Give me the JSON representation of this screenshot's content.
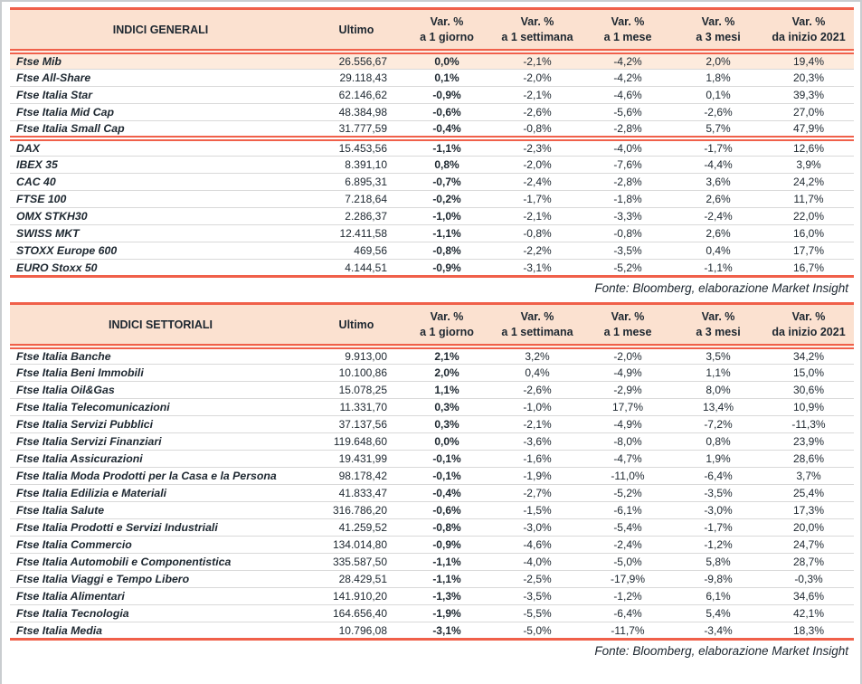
{
  "accent_colors": {
    "line_red": "#f0604a",
    "header_background": "#fbe1d0",
    "highlight_row_background": "#fdebdd",
    "text": "#1d2730"
  },
  "tables": [
    {
      "title": "INDICI GENERALI",
      "ultimo_label": "Ultimo",
      "var_columns": [
        {
          "line1": "Var. %",
          "line2": "a 1 giorno"
        },
        {
          "line1": "Var. %",
          "line2": "a 1 settimana"
        },
        {
          "line1": "Var. %",
          "line2": "a 1 mese"
        },
        {
          "line1": "Var. %",
          "line2": "a 3 mesi"
        },
        {
          "line1": "Var. %",
          "line2": "da inizio 2021"
        }
      ],
      "rows": [
        {
          "name": "Ftse Mib",
          "values": [
            "26.556,67",
            "0,0%",
            "-2,1%",
            "-4,2%",
            "2,0%",
            "19,4%"
          ],
          "highlight": true
        },
        {
          "name": "Ftse All-Share",
          "values": [
            "29.118,43",
            "0,1%",
            "-2,0%",
            "-4,2%",
            "1,8%",
            "20,3%"
          ]
        },
        {
          "name": "Ftse Italia Star",
          "values": [
            "62.146,62",
            "-0,9%",
            "-2,1%",
            "-4,6%",
            "0,1%",
            "39,3%"
          ]
        },
        {
          "name": "Ftse Italia Mid Cap",
          "values": [
            "48.384,98",
            "-0,6%",
            "-2,6%",
            "-5,6%",
            "-2,6%",
            "27,0%"
          ]
        },
        {
          "name": "Ftse Italia Small Cap",
          "values": [
            "31.777,59",
            "-0,4%",
            "-0,8%",
            "-2,8%",
            "5,7%",
            "47,9%"
          ],
          "divider_after": true
        },
        {
          "name": "DAX",
          "values": [
            "15.453,56",
            "-1,1%",
            "-2,3%",
            "-4,0%",
            "-1,7%",
            "12,6%"
          ]
        },
        {
          "name": "IBEX 35",
          "values": [
            "8.391,10",
            "0,8%",
            "-2,0%",
            "-7,6%",
            "-4,4%",
            "3,9%"
          ]
        },
        {
          "name": "CAC 40",
          "values": [
            "6.895,31",
            "-0,7%",
            "-2,4%",
            "-2,8%",
            "3,6%",
            "24,2%"
          ]
        },
        {
          "name": "FTSE 100",
          "values": [
            "7.218,64",
            "-0,2%",
            "-1,7%",
            "-1,8%",
            "2,6%",
            "11,7%"
          ]
        },
        {
          "name": "OMX STKH30",
          "values": [
            "2.286,37",
            "-1,0%",
            "-2,1%",
            "-3,3%",
            "-2,4%",
            "22,0%"
          ]
        },
        {
          "name": "SWISS MKT",
          "values": [
            "12.411,58",
            "-1,1%",
            "-0,8%",
            "-0,8%",
            "2,6%",
            "16,0%"
          ]
        },
        {
          "name": "STOXX Europe 600",
          "values": [
            "469,56",
            "-0,8%",
            "-2,2%",
            "-3,5%",
            "0,4%",
            "17,7%"
          ]
        },
        {
          "name": "EURO Stoxx 50",
          "values": [
            "4.144,51",
            "-0,9%",
            "-3,1%",
            "-5,2%",
            "-1,1%",
            "16,7%"
          ]
        }
      ],
      "source": "Fonte: Bloomberg, elaborazione Market Insight"
    },
    {
      "title": "INDICI SETTORIALI",
      "ultimo_label": "Ultimo",
      "var_columns": [
        {
          "line1": "Var. %",
          "line2": "a 1 giorno"
        },
        {
          "line1": "Var. %",
          "line2": "a 1 settimana"
        },
        {
          "line1": "Var. %",
          "line2": "a 1 mese"
        },
        {
          "line1": "Var. %",
          "line2": "a 3 mesi"
        },
        {
          "line1": "Var. %",
          "line2": "da inizio 2021"
        }
      ],
      "rows": [
        {
          "name": "Ftse Italia Banche",
          "values": [
            "9.913,00",
            "2,1%",
            "3,2%",
            "-2,0%",
            "3,5%",
            "34,2%"
          ]
        },
        {
          "name": "Ftse Italia Beni Immobili",
          "values": [
            "10.100,86",
            "2,0%",
            "0,4%",
            "-4,9%",
            "1,1%",
            "15,0%"
          ]
        },
        {
          "name": "Ftse Italia Oil&Gas",
          "values": [
            "15.078,25",
            "1,1%",
            "-2,6%",
            "-2,9%",
            "8,0%",
            "30,6%"
          ]
        },
        {
          "name": "Ftse Italia Telecomunicazioni",
          "values": [
            "11.331,70",
            "0,3%",
            "-1,0%",
            "17,7%",
            "13,4%",
            "10,9%"
          ]
        },
        {
          "name": "Ftse Italia Servizi Pubblici",
          "values": [
            "37.137,56",
            "0,3%",
            "-2,1%",
            "-4,9%",
            "-7,2%",
            "-11,3%"
          ]
        },
        {
          "name": "Ftse Italia Servizi Finanziari",
          "values": [
            "119.648,60",
            "0,0%",
            "-3,6%",
            "-8,0%",
            "0,8%",
            "23,9%"
          ]
        },
        {
          "name": "Ftse Italia Assicurazioni",
          "values": [
            "19.431,99",
            "-0,1%",
            "-1,6%",
            "-4,7%",
            "1,9%",
            "28,6%"
          ]
        },
        {
          "name": "Ftse Italia Moda Prodotti per la Casa e la Persona",
          "values": [
            "98.178,42",
            "-0,1%",
            "-1,9%",
            "-11,0%",
            "-6,4%",
            "3,7%"
          ]
        },
        {
          "name": "Ftse Italia Edilizia e Materiali",
          "values": [
            "41.833,47",
            "-0,4%",
            "-2,7%",
            "-5,2%",
            "-3,5%",
            "25,4%"
          ]
        },
        {
          "name": "Ftse Italia Salute",
          "values": [
            "316.786,20",
            "-0,6%",
            "-1,5%",
            "-6,1%",
            "-3,0%",
            "17,3%"
          ]
        },
        {
          "name": "Ftse Italia Prodotti e Servizi Industriali",
          "values": [
            "41.259,52",
            "-0,8%",
            "-3,0%",
            "-5,4%",
            "-1,7%",
            "20,0%"
          ]
        },
        {
          "name": "Ftse Italia Commercio",
          "values": [
            "134.014,80",
            "-0,9%",
            "-4,6%",
            "-2,4%",
            "-1,2%",
            "24,7%"
          ]
        },
        {
          "name": "Ftse Italia Automobili e Componentistica",
          "values": [
            "335.587,50",
            "-1,1%",
            "-4,0%",
            "-5,0%",
            "5,8%",
            "28,7%"
          ]
        },
        {
          "name": "Ftse Italia Viaggi e Tempo Libero",
          "values": [
            "28.429,51",
            "-1,1%",
            "-2,5%",
            "-17,9%",
            "-9,8%",
            "-0,3%"
          ]
        },
        {
          "name": "Ftse Italia Alimentari",
          "values": [
            "141.910,20",
            "-1,3%",
            "-3,5%",
            "-1,2%",
            "6,1%",
            "34,6%"
          ]
        },
        {
          "name": "Ftse Italia Tecnologia",
          "values": [
            "164.656,40",
            "-1,9%",
            "-5,5%",
            "-6,4%",
            "5,4%",
            "42,1%"
          ]
        },
        {
          "name": "Ftse Italia Media",
          "values": [
            "10.796,08",
            "-3,1%",
            "-5,0%",
            "-11,7%",
            "-3,4%",
            "18,3%"
          ]
        }
      ],
      "source": "Fonte: Bloomberg, elaborazione Market Insight"
    }
  ]
}
